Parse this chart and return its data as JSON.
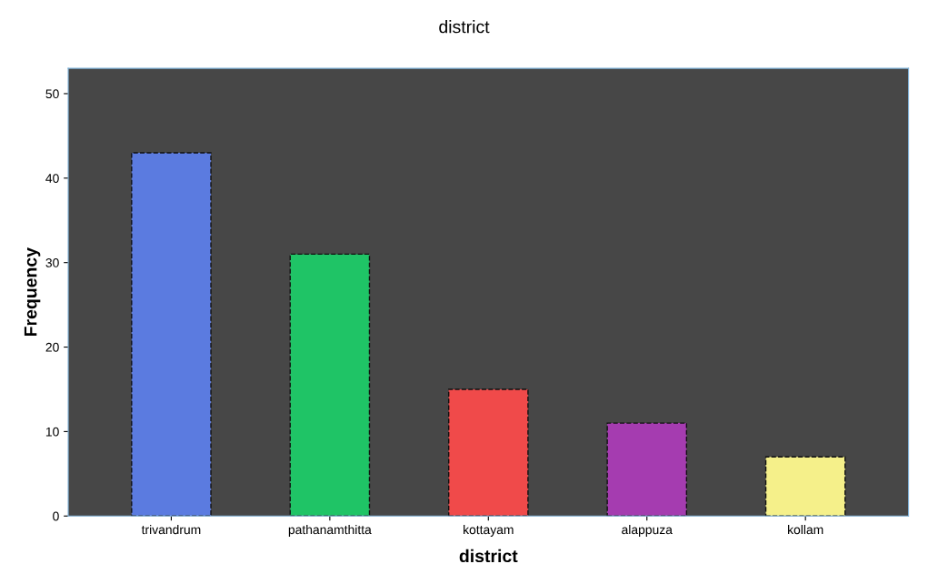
{
  "chart_data": {
    "type": "bar",
    "title": "district",
    "xlabel": "district",
    "ylabel": "Frequency",
    "categories": [
      "trivandrum",
      "pathanamthitta",
      "kottayam",
      "alappuza",
      "kollam"
    ],
    "values": [
      43,
      31,
      15,
      11,
      7
    ],
    "colors": [
      "#5b7be0",
      "#1fc466",
      "#f04a4a",
      "#a53cb0",
      "#f5f08a"
    ],
    "ylim": [
      0,
      53
    ],
    "yticks": [
      0,
      10,
      20,
      30,
      40,
      50
    ],
    "grid": false,
    "legend": false
  }
}
